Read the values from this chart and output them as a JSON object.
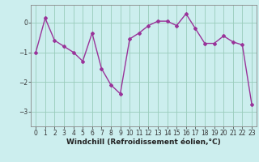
{
  "x": [
    0,
    1,
    2,
    3,
    4,
    5,
    6,
    7,
    8,
    9,
    10,
    11,
    12,
    13,
    14,
    15,
    16,
    17,
    18,
    19,
    20,
    21,
    22,
    23
  ],
  "y": [
    -1.0,
    0.15,
    -0.6,
    -0.8,
    -1.0,
    -1.3,
    -0.35,
    -1.55,
    -2.1,
    -2.4,
    -0.55,
    -0.35,
    -0.1,
    0.05,
    0.05,
    -0.1,
    0.3,
    -0.2,
    -0.7,
    -0.7,
    -0.45,
    -0.65,
    -0.75,
    -2.75
  ],
  "line_color": "#993399",
  "marker": "D",
  "marker_size": 2,
  "bg_color": "#cceeee",
  "grid_color": "#99ccbb",
  "xlabel": "Windchill (Refroidissement éolien,°C)",
  "ylim": [
    -3.5,
    0.6
  ],
  "xlim": [
    -0.5,
    23.5
  ],
  "yticks": [
    -3,
    -2,
    -1,
    0
  ],
  "xticks": [
    0,
    1,
    2,
    3,
    4,
    5,
    6,
    7,
    8,
    9,
    10,
    11,
    12,
    13,
    14,
    15,
    16,
    17,
    18,
    19,
    20,
    21,
    22,
    23
  ],
  "tick_fontsize": 5.5,
  "xlabel_fontsize": 6.5,
  "line_width": 1.0,
  "spine_color": "#888888"
}
